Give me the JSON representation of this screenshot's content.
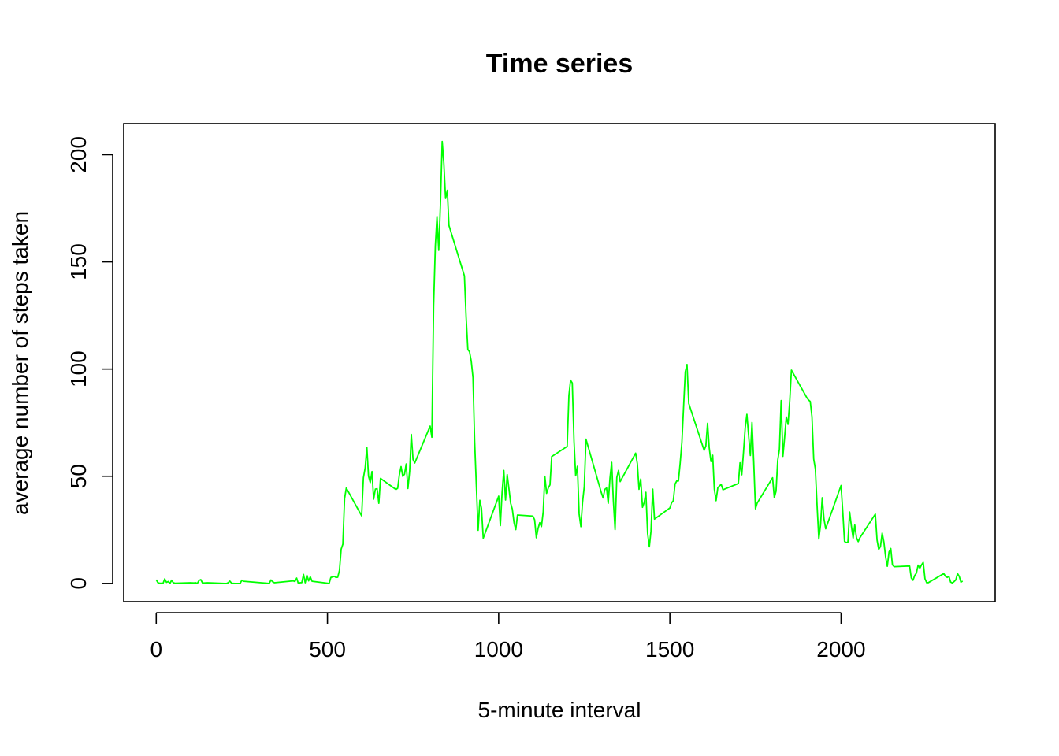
{
  "chart_data": {
    "type": "line",
    "title": "Time series",
    "xlabel": "5-minute interval",
    "ylabel": "average number of steps taken",
    "xlim": [
      -95,
      2450
    ],
    "ylim": [
      -8.5,
      214.5
    ],
    "xticks": [
      0,
      500,
      1000,
      1500,
      2000
    ],
    "yticks": [
      0,
      50,
      100,
      150,
      200
    ],
    "line_color": "#00ff00",
    "grid": false,
    "series": [
      {
        "x": [
          0,
          5,
          10,
          20,
          25,
          30,
          35,
          40,
          45,
          50,
          55,
          100,
          110,
          115,
          120,
          125,
          130,
          135,
          140,
          150,
          200,
          205,
          210,
          215,
          220,
          230,
          240,
          245,
          250,
          255,
          330,
          335,
          340,
          345,
          400,
          405,
          410,
          415,
          420,
          425,
          430,
          435,
          440,
          445,
          450,
          455,
          505,
          510,
          520,
          525,
          530,
          535,
          540,
          545,
          550,
          555,
          600,
          605,
          610,
          615,
          620,
          625,
          630,
          635,
          640,
          645,
          650,
          655,
          700,
          705,
          710,
          715,
          720,
          725,
          730,
          735,
          740,
          745,
          750,
          755,
          800,
          805,
          810,
          815,
          820,
          825,
          830,
          835,
          840,
          845,
          850,
          855,
          900,
          905,
          910,
          915,
          920,
          925,
          930,
          935,
          940,
          945,
          950,
          955,
          1000,
          1005,
          1010,
          1015,
          1020,
          1025,
          1030,
          1035,
          1040,
          1045,
          1050,
          1055,
          1100,
          1105,
          1110,
          1115,
          1120,
          1125,
          1130,
          1135,
          1140,
          1145,
          1150,
          1155,
          1200,
          1205,
          1210,
          1215,
          1220,
          1225,
          1230,
          1235,
          1240,
          1245,
          1250,
          1255,
          1300,
          1305,
          1310,
          1315,
          1320,
          1325,
          1330,
          1335,
          1340,
          1345,
          1350,
          1355,
          1400,
          1405,
          1410,
          1415,
          1420,
          1425,
          1430,
          1435,
          1440,
          1445,
          1450,
          1455,
          1500,
          1505,
          1510,
          1515,
          1520,
          1525,
          1530,
          1535,
          1540,
          1545,
          1550,
          1555,
          1600,
          1605,
          1610,
          1615,
          1620,
          1625,
          1630,
          1635,
          1640,
          1645,
          1650,
          1655,
          1700,
          1705,
          1710,
          1715,
          1720,
          1725,
          1730,
          1735,
          1740,
          1745,
          1750,
          1755,
          1800,
          1805,
          1810,
          1815,
          1820,
          1825,
          1830,
          1835,
          1840,
          1845,
          1850,
          1855,
          1900,
          1905,
          1910,
          1915,
          1920,
          1925,
          1930,
          1935,
          1940,
          1945,
          1950,
          1955,
          2000,
          2005,
          2010,
          2015,
          2020,
          2025,
          2030,
          2035,
          2040,
          2045,
          2050,
          2055,
          2100,
          2105,
          2110,
          2115,
          2120,
          2125,
          2130,
          2135,
          2140,
          2145,
          2150,
          2155,
          2200,
          2205,
          2210,
          2215,
          2220,
          2225,
          2230,
          2235,
          2240,
          2245,
          2250,
          2255,
          2300,
          2305,
          2310,
          2315,
          2320,
          2325,
          2330,
          2335,
          2340,
          2345,
          2350,
          2355
        ],
        "y": [
          1.7,
          0.3,
          0.1,
          0.1,
          2.1,
          0.5,
          0.9,
          0,
          1.5,
          0.3,
          0.1,
          0.3,
          0.2,
          0.3,
          0,
          1.4,
          1.8,
          0.2,
          0.2,
          0.3,
          0,
          0,
          0.3,
          1.1,
          0.1,
          0,
          0,
          0,
          1.5,
          1,
          0,
          1.6,
          0.8,
          0.3,
          1.2,
          0.9,
          2.5,
          0,
          0.3,
          0.4,
          4.2,
          0.3,
          3.8,
          1.2,
          3.1,
          1,
          0,
          2.8,
          3.3,
          2.8,
          2.9,
          6.1,
          16.0,
          18.3,
          39.5,
          44.5,
          31.5,
          49.3,
          53.8,
          63.5,
          50.0,
          47.1,
          52.2,
          39.3,
          44.0,
          44.2,
          37.4,
          49.0,
          43.8,
          44.4,
          50.5,
          54.5,
          49.9,
          50.98,
          55.7,
          44.3,
          52.3,
          69.5,
          57.8,
          56.2,
          73.4,
          68.2,
          129.4,
          157.5,
          171.2,
          155.4,
          177.3,
          206.2,
          195.9,
          179.6,
          183.4,
          167.0,
          143.5,
          124.0,
          109.1,
          108.1,
          103.7,
          95.97,
          66.2,
          45.2,
          24.8,
          38.8,
          34.98,
          21.1,
          40.7,
          26.98,
          42.4,
          52.7,
          38.9,
          50.8,
          44.3,
          37.4,
          34.7,
          28.3,
          25.1,
          31.9,
          31.4,
          29.7,
          21.3,
          25.5,
          28.3,
          26.5,
          33.4,
          50.0,
          42.0,
          44.6,
          46.0,
          59.2,
          63.9,
          87.6,
          94.8,
          93.5,
          66.3,
          50.2,
          54.6,
          32.4,
          26.5,
          37.7,
          45.1,
          67.3,
          42.3,
          39.9,
          43.9,
          44.5,
          37.4,
          49.0,
          56.5,
          38.8,
          25.1,
          49.4,
          52.7,
          47.5,
          60.8,
          55.8,
          43.9,
          48.7,
          35.5,
          37.8,
          42.5,
          23.3,
          17.1,
          24.5,
          44.0,
          30.0,
          35.2,
          37.6,
          38.6,
          46.3,
          47.8,
          47.8,
          56.1,
          65.8,
          82.0,
          98.7,
          102.1,
          83.96,
          62.1,
          64.1,
          74.7,
          63.2,
          56.9,
          59.8,
          43.9,
          38.6,
          44.7,
          45.5,
          46.2,
          43.7,
          46.6,
          56.3,
          50.7,
          61.2,
          72.7,
          78.9,
          68.9,
          59.7,
          75.1,
          56.5,
          34.8,
          37.5,
          49.3,
          40.0,
          43.0,
          57.3,
          62.6,
          85.3,
          59.3,
          67.8,
          77.7,
          74.2,
          85.3,
          99.5,
          86.6,
          85.6,
          84.9,
          77.8,
          58.0,
          53.4,
          36.3,
          20.7,
          27.4,
          40.0,
          30.2,
          25.5,
          45.7,
          33.5,
          19.6,
          19.0,
          19.3,
          33.3,
          26.8,
          21.2,
          27.3,
          21.3,
          19.5,
          21.3,
          32.3,
          20.2,
          15.9,
          17.2,
          23.5,
          19.2,
          12.5,
          8.0,
          14.7,
          16.3,
          8.7,
          7.8,
          8.1,
          2.6,
          1.5,
          3.7,
          4.8,
          8.5,
          7.1,
          8.7,
          9.8,
          2.2,
          0.3,
          0.4,
          4.6,
          3.3,
          2.8,
          3.3,
          0.6,
          0.2,
          0.9,
          1.6,
          4.6,
          3.3,
          0.6,
          1.1
        ]
      }
    ]
  }
}
